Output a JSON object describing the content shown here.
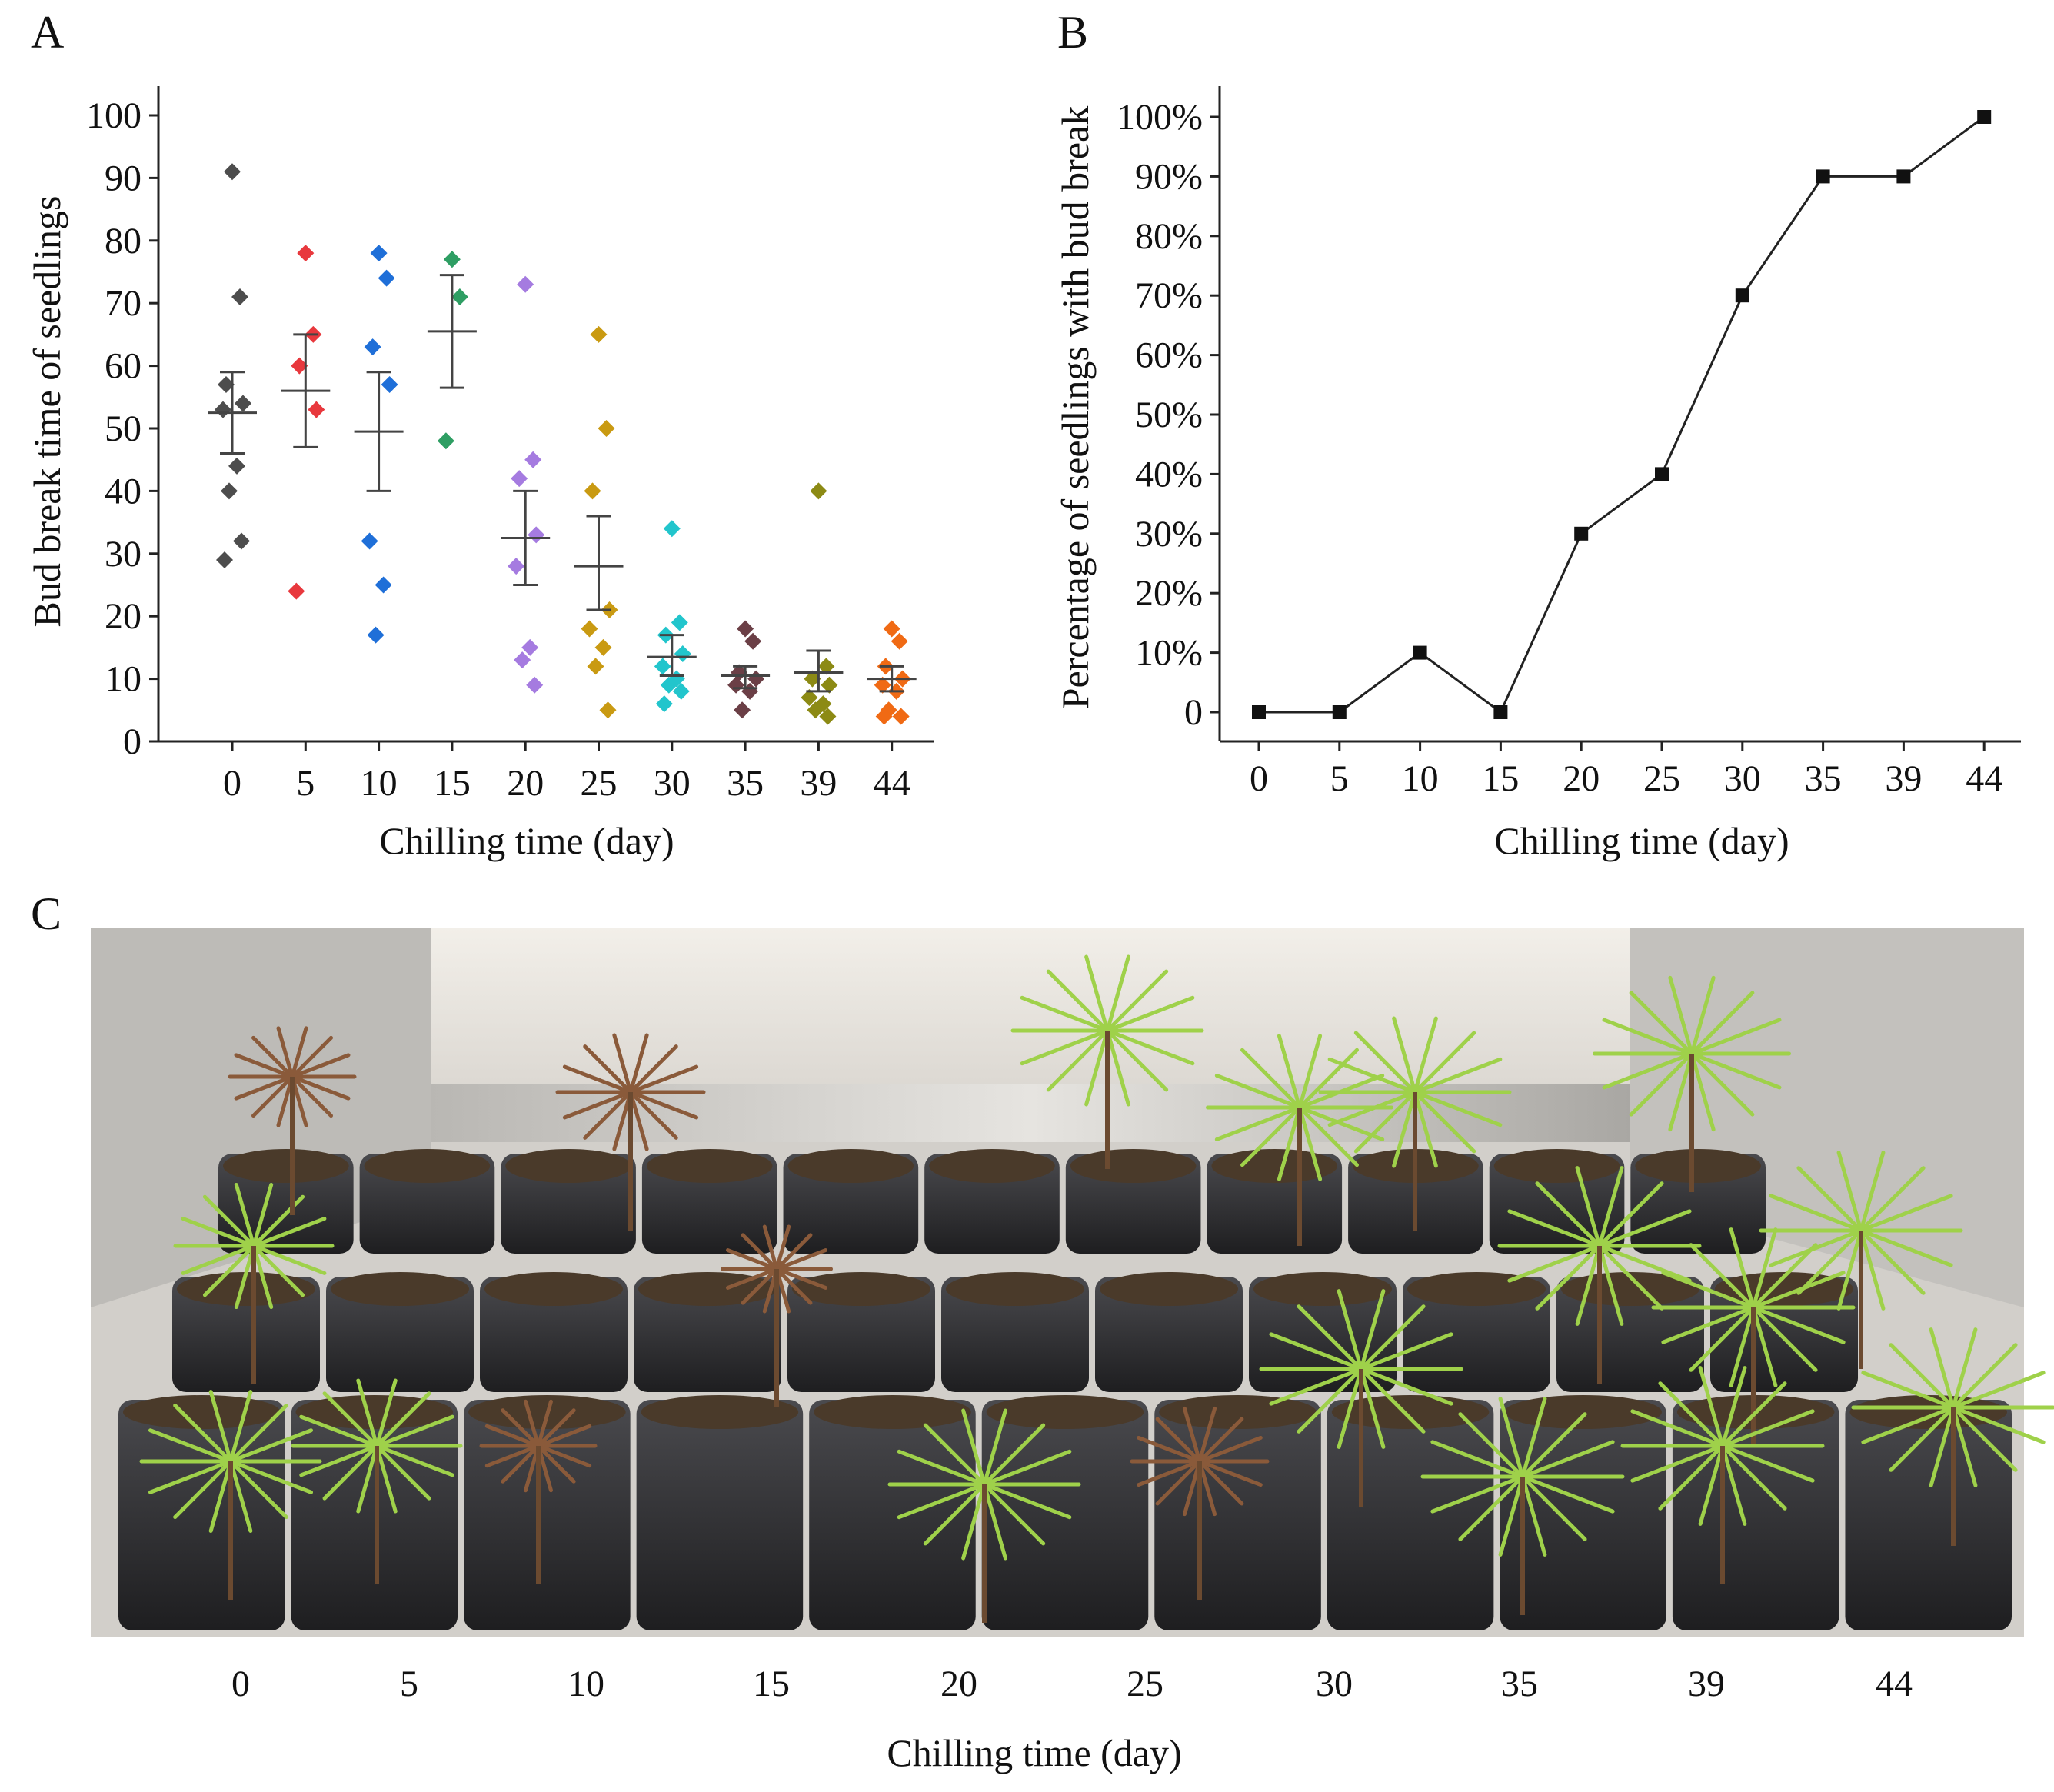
{
  "panels": {
    "a_label": "A",
    "b_label": "B",
    "c_label": "C"
  },
  "chart_data": [
    {
      "type": "scatter",
      "panel": "A",
      "xlabel": "Chilling time (day)",
      "ylabel": "Bud break time of seedlings",
      "ylim": [
        0,
        100
      ],
      "yticks": [
        0,
        10,
        20,
        30,
        40,
        50,
        60,
        70,
        80,
        90,
        100
      ],
      "categories": [
        "0",
        "5",
        "10",
        "15",
        "20",
        "25",
        "30",
        "35",
        "39",
        "44"
      ],
      "series": [
        {
          "name": "0",
          "color": "#4d4d4d",
          "values": [
            91,
            71,
            57,
            54,
            53,
            44,
            40,
            32,
            29
          ],
          "mean": 52.5,
          "sem_low": 46,
          "sem_high": 59
        },
        {
          "name": "5",
          "color": "#e8383d",
          "values": [
            78,
            65,
            60,
            53,
            24
          ],
          "mean": 56,
          "sem_low": 47,
          "sem_high": 65
        },
        {
          "name": "10",
          "color": "#1f6fd8",
          "values": [
            78,
            74,
            63,
            57,
            32,
            25,
            17
          ],
          "mean": 49.5,
          "sem_low": 40,
          "sem_high": 59
        },
        {
          "name": "15",
          "color": "#2e9e63",
          "values": [
            77,
            71,
            48
          ],
          "mean": 65.5,
          "sem_low": 56.5,
          "sem_high": 74.5
        },
        {
          "name": "20",
          "color": "#a57be0",
          "values": [
            73,
            45,
            42,
            33,
            28,
            15,
            13,
            9
          ],
          "mean": 32.5,
          "sem_low": 25,
          "sem_high": 40
        },
        {
          "name": "25",
          "color": "#c99a12",
          "values": [
            65,
            50,
            40,
            21,
            18,
            15,
            12,
            5
          ],
          "mean": 28,
          "sem_low": 21,
          "sem_high": 36
        },
        {
          "name": "30",
          "color": "#22c5cc",
          "values": [
            34,
            19,
            17,
            14,
            12,
            10,
            9,
            8,
            6
          ],
          "mean": 13.5,
          "sem_low": 10.5,
          "sem_high": 17
        },
        {
          "name": "35",
          "color": "#6b3f46",
          "values": [
            18,
            16,
            11,
            10,
            9,
            8,
            5
          ],
          "mean": 10.5,
          "sem_low": 8.5,
          "sem_high": 12
        },
        {
          "name": "39",
          "color": "#8c8a14",
          "values": [
            40,
            12,
            10,
            9,
            7,
            6,
            5,
            4
          ],
          "mean": 11,
          "sem_low": 8,
          "sem_high": 14.5
        },
        {
          "name": "44",
          "color": "#f06a14",
          "values": [
            18,
            16,
            12,
            10,
            9,
            8,
            5,
            4,
            4
          ],
          "mean": 10,
          "sem_low": 8,
          "sem_high": 12
        }
      ]
    },
    {
      "type": "line",
      "panel": "B",
      "xlabel": "Chilling time (day)",
      "ylabel": "Percentage of seedlings with bud break",
      "ylim": [
        0,
        100
      ],
      "yticks": [
        "0",
        "10%",
        "20%",
        "30%",
        "40%",
        "50%",
        "60%",
        "70%",
        "80%",
        "90%",
        "100%"
      ],
      "categories": [
        "0",
        "5",
        "10",
        "15",
        "20",
        "25",
        "30",
        "35",
        "39",
        "44"
      ],
      "values": [
        0,
        0,
        10,
        0,
        30,
        40,
        70,
        90,
        90,
        100
      ]
    }
  ],
  "photo": {
    "xlabel": "Chilling time (day)",
    "categories": [
      "0",
      "5",
      "10",
      "15",
      "20",
      "25",
      "30",
      "35",
      "39",
      "44"
    ],
    "colors": {
      "background": "#d6d3cf",
      "wall": "#c4c2be",
      "foil": "#9a9894",
      "pot": "#2a2a2c",
      "soil": "#4a3a2a",
      "green": "#9fd14a",
      "dry": "#8a5a3a"
    }
  }
}
